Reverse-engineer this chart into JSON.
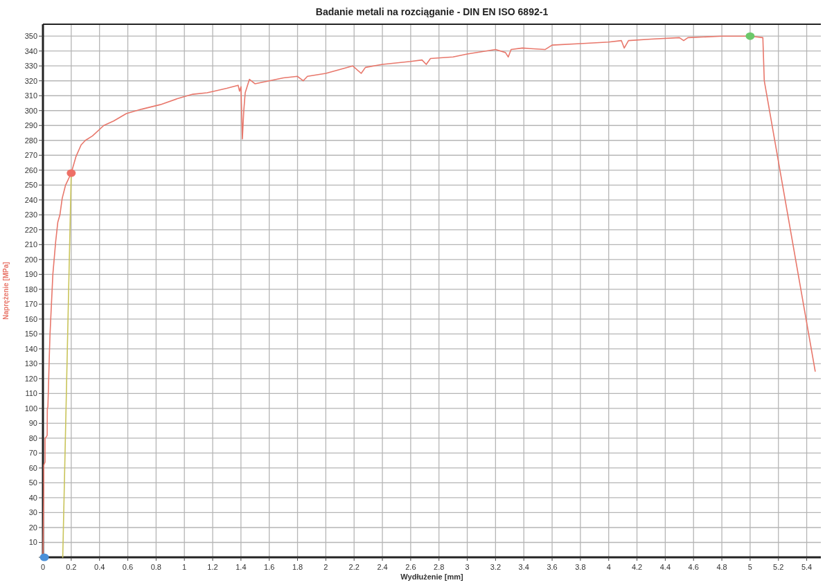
{
  "chart_data": {
    "type": "line",
    "title": "Badanie metali na rozciąganie - DIN EN ISO 6892-1",
    "xlabel": "Wydłużenie [mm]",
    "ylabel": "Naprężenie [MPa]",
    "xlim": [
      0,
      5.5
    ],
    "ylim": [
      0,
      358
    ],
    "xticks": [
      0,
      0.2,
      0.4,
      0.6,
      0.8,
      1,
      1.2,
      1.4,
      1.6,
      1.8,
      2,
      2.2,
      2.4,
      2.6,
      2.8,
      3,
      3.2,
      3.4,
      3.6,
      3.8,
      4,
      4.2,
      4.4,
      4.6,
      4.8,
      5,
      5.2,
      5.4
    ],
    "yticks": [
      {
        "value": 0,
        "label": null
      },
      10,
      20,
      30,
      40,
      50,
      60,
      70,
      80,
      90,
      100,
      110,
      120,
      130,
      140,
      150,
      160,
      170,
      180,
      190,
      200,
      210,
      220,
      230,
      240,
      250,
      260,
      270,
      280,
      290,
      300,
      310,
      320,
      330,
      340,
      350
    ],
    "grid": true,
    "series": [
      {
        "color": "#e8776b",
        "marker": "none",
        "x": [
          0,
          0.004,
          0.006,
          0.006,
          0.015,
          0.015,
          0.025,
          0.03,
          0.031,
          0.035,
          0.039,
          0.045,
          0.05,
          0.06,
          0.07,
          0.09,
          0.105,
          0.12,
          0.136,
          0.16,
          0.2,
          0.233,
          0.27,
          0.3,
          0.35,
          0.43,
          0.5,
          0.59,
          0.7,
          0.83,
          0.95,
          1.06,
          1.16,
          1.21,
          1.3,
          1.38,
          1.39,
          1.4,
          1.41,
          1.42,
          1.43,
          1.46,
          1.5,
          1.6,
          1.7,
          1.8,
          1.84,
          1.87,
          2,
          2.19,
          2.25,
          2.28,
          2.4,
          2.6,
          2.68,
          2.71,
          2.74,
          2.9,
          3,
          3.2,
          3.27,
          3.29,
          3.31,
          3.39,
          3.55,
          3.6,
          3.8,
          4.0,
          4.09,
          4.11,
          4.14,
          4.3,
          4.5,
          4.53,
          4.56,
          4.8,
          5.0,
          5.09,
          5.1,
          5.46
        ],
        "values": [
          0,
          28,
          44,
          62,
          64,
          80,
          81,
          82,
          100,
          101,
          114,
          135,
          150,
          170,
          190,
          212,
          225,
          230,
          241,
          250,
          258,
          269,
          277,
          280,
          283,
          290,
          293,
          298,
          301,
          304,
          308,
          311,
          312,
          313,
          315,
          317,
          313,
          316,
          281,
          300,
          312,
          321,
          318,
          320,
          322,
          323,
          320,
          323,
          325,
          330,
          325,
          329,
          331,
          333,
          334,
          331,
          335,
          336,
          338,
          341,
          339,
          336,
          341,
          342,
          341,
          344,
          345,
          346,
          347,
          342,
          347,
          348,
          349,
          347,
          349,
          350,
          350,
          349,
          320,
          125
        ]
      },
      {
        "color": "#c9c45a",
        "marker": "none",
        "x": [
          0.14,
          0.2
        ],
        "values": [
          0,
          258
        ]
      },
      {
        "type": "scatter",
        "color": "#ee7066",
        "marker": "circle",
        "x": [
          0.2
        ],
        "values": [
          258
        ]
      },
      {
        "type": "scatter",
        "color": "#6cc86a",
        "marker": "circle",
        "x": [
          5.0
        ],
        "values": [
          350
        ]
      },
      {
        "type": "scatter",
        "color": "#4a90d9",
        "marker": "circle",
        "x": [
          0.01
        ],
        "values": [
          0
        ]
      }
    ]
  }
}
